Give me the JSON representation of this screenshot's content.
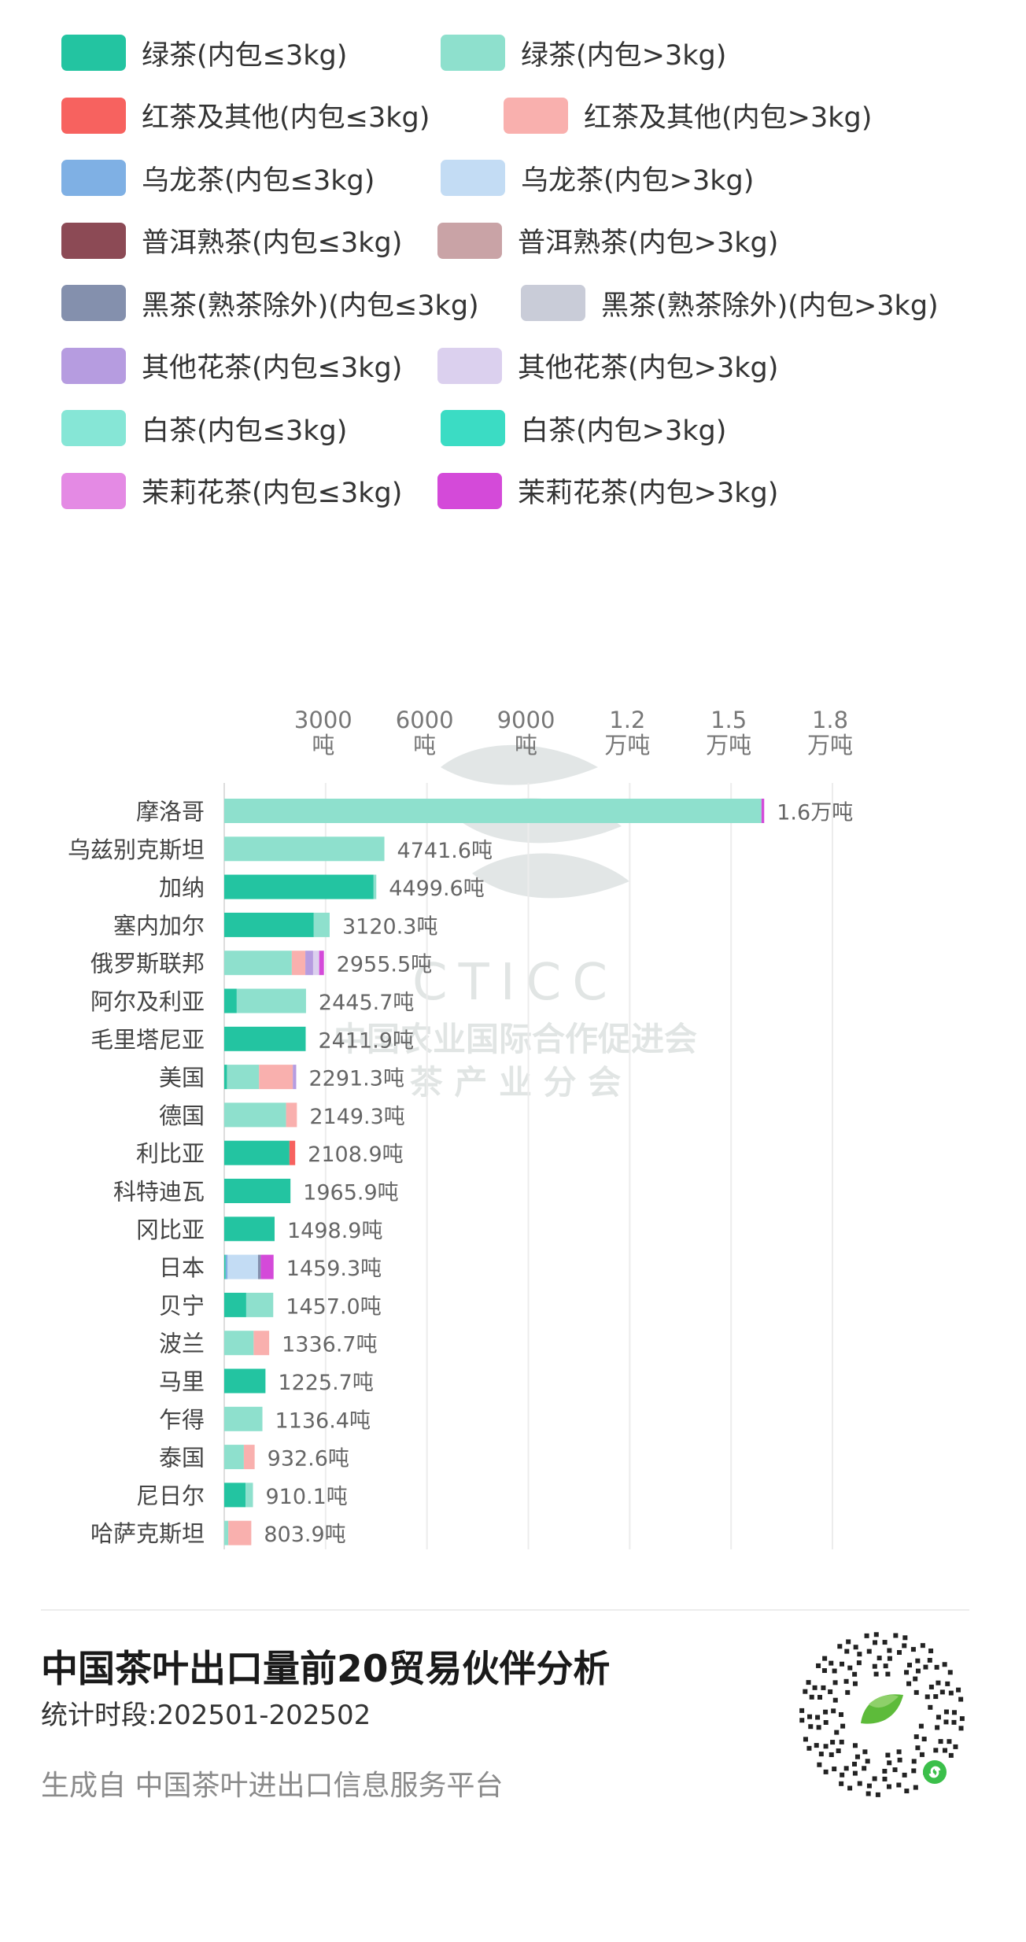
{
  "legend": [
    {
      "label": "绿茶(内包≤3kg)",
      "color": "#23c4a1"
    },
    {
      "label": "绿茶(内包>3kg)",
      "color": "#8ee0cd"
    },
    {
      "label": "红茶及其他(内包≤3kg)",
      "color": "#f7625f"
    },
    {
      "label": "红茶及其他(内包>3kg)",
      "color": "#f9b0ae"
    },
    {
      "label": "乌龙茶(内包≤3kg)",
      "color": "#7fb0e4"
    },
    {
      "label": "乌龙茶(内包>3kg)",
      "color": "#c3dcf4"
    },
    {
      "label": "普洱熟茶(内包≤3kg)",
      "color": "#8c4a55"
    },
    {
      "label": "普洱熟茶(内包>3kg)",
      "color": "#c9a3a6"
    },
    {
      "label": "黑茶(熟茶除外)(内包≤3kg)",
      "color": "#8490ad"
    },
    {
      "label": "黑茶(熟茶除外)(内包>3kg)",
      "color": "#c9ccd8"
    },
    {
      "label": "其他花茶(内包≤3kg)",
      "color": "#b69ce0"
    },
    {
      "label": "其他花茶(内包>3kg)",
      "color": "#dbd0ee"
    },
    {
      "label": "白茶(内包≤3kg)",
      "color": "#86e6d6"
    },
    {
      "label": "白茶(内包>3kg)",
      "color": "#3bdcc4"
    },
    {
      "label": "茉莉花茶(内包≤3kg)",
      "color": "#e48ae4"
    },
    {
      "label": "茉莉花茶(内包>3kg)",
      "color": "#d44ad9"
    }
  ],
  "chart_data": {
    "type": "bar",
    "orientation": "horizontal",
    "stacked": true,
    "unit": "吨",
    "xlim": [
      0,
      18000
    ],
    "x_ticks": [
      {
        "value": 3000,
        "label": [
          "3000",
          "吨"
        ]
      },
      {
        "value": 6000,
        "label": [
          "6000",
          "吨"
        ]
      },
      {
        "value": 9000,
        "label": [
          "9000",
          "吨"
        ]
      },
      {
        "value": 12000,
        "label": [
          "1.2",
          "万吨"
        ]
      },
      {
        "value": 15000,
        "label": [
          "1.5",
          "万吨"
        ]
      },
      {
        "value": 18000,
        "label": [
          "1.8",
          "万吨"
        ]
      }
    ],
    "grid": true,
    "categories": [
      "摩洛哥",
      "乌兹别克斯坦",
      "加纳",
      "塞内加尔",
      "俄罗斯联邦",
      "阿尔及利亚",
      "毛里塔尼亚",
      "美国",
      "德国",
      "利比亚",
      "科特迪瓦",
      "冈比亚",
      "日本",
      "贝宁",
      "波兰",
      "马里",
      "乍得",
      "泰国",
      "尼日尔",
      "哈萨克斯坦"
    ],
    "totals": [
      "1.6万吨",
      "4741.6吨",
      "4499.6吨",
      "3120.3吨",
      "2955.5吨",
      "2445.7吨",
      "2411.9吨",
      "2291.3吨",
      "2149.3吨",
      "2108.9吨",
      "1965.9吨",
      "1498.9吨",
      "1459.3吨",
      "1457.0吨",
      "1336.7吨",
      "1225.7吨",
      "1136.4吨",
      "932.6吨",
      "910.1吨",
      "803.9吨"
    ],
    "series": [
      {
        "name": "绿茶(内包≤3kg)",
        "color": "#23c4a1",
        "values": [
          0,
          0,
          4420,
          2650,
          0,
          370,
          2410,
          80,
          0,
          1930,
          1960,
          1490,
          40,
          650,
          0,
          1220,
          0,
          0,
          630,
          0
        ]
      },
      {
        "name": "绿茶(内包>3kg)",
        "color": "#8ee0cd",
        "values": [
          15900,
          4740,
          80,
          470,
          2000,
          2050,
          0,
          950,
          1830,
          0,
          0,
          0,
          0,
          800,
          870,
          0,
          1130,
          580,
          220,
          120
        ]
      },
      {
        "name": "红茶及其他(内包≤3kg)",
        "color": "#f7625f",
        "values": [
          0,
          0,
          0,
          0,
          0,
          0,
          0,
          0,
          0,
          170,
          0,
          0,
          0,
          0,
          0,
          0,
          0,
          0,
          0,
          0
        ]
      },
      {
        "name": "红茶及其他(内包>3kg)",
        "color": "#f9b0ae",
        "values": [
          0,
          0,
          0,
          0,
          400,
          0,
          0,
          1000,
          320,
          0,
          0,
          0,
          0,
          0,
          460,
          0,
          0,
          320,
          0,
          680
        ]
      },
      {
        "name": "乌龙茶(内包≤3kg)",
        "color": "#7fb0e4",
        "values": [
          0,
          0,
          0,
          0,
          0,
          0,
          0,
          0,
          0,
          0,
          0,
          0,
          60,
          0,
          0,
          0,
          0,
          0,
          0,
          0
        ]
      },
      {
        "name": "乌龙茶(内包>3kg)",
        "color": "#c3dcf4",
        "values": [
          0,
          0,
          0,
          0,
          0,
          0,
          0,
          0,
          0,
          0,
          0,
          0,
          900,
          0,
          0,
          0,
          0,
          0,
          0,
          0
        ]
      },
      {
        "name": "普洱熟茶(内包≤3kg)",
        "color": "#8c4a55",
        "values": [
          0,
          0,
          0,
          0,
          0,
          0,
          0,
          0,
          0,
          0,
          0,
          0,
          0,
          0,
          0,
          0,
          0,
          0,
          0,
          0
        ]
      },
      {
        "name": "普洱熟茶(内包>3kg)",
        "color": "#c9a3a6",
        "values": [
          0,
          0,
          0,
          0,
          0,
          0,
          0,
          0,
          0,
          0,
          0,
          0,
          0,
          0,
          0,
          0,
          0,
          0,
          0,
          0
        ]
      },
      {
        "name": "黑茶(熟茶除外)(内包≤3kg)",
        "color": "#8490ad",
        "values": [
          0,
          0,
          0,
          0,
          0,
          0,
          0,
          0,
          0,
          0,
          0,
          0,
          80,
          0,
          0,
          0,
          0,
          0,
          0,
          0
        ]
      },
      {
        "name": "黑茶(熟茶除外)(内包>3kg)",
        "color": "#c9ccd8",
        "values": [
          0,
          0,
          0,
          0,
          0,
          0,
          0,
          0,
          0,
          0,
          0,
          0,
          0,
          0,
          0,
          0,
          0,
          0,
          0,
          0
        ]
      },
      {
        "name": "其他花茶(内包≤3kg)",
        "color": "#b69ce0",
        "values": [
          0,
          0,
          0,
          0,
          230,
          0,
          0,
          100,
          0,
          0,
          0,
          0,
          0,
          0,
          0,
          0,
          0,
          0,
          0,
          0
        ]
      },
      {
        "name": "其他花茶(内包>3kg)",
        "color": "#dbd0ee",
        "values": [
          0,
          0,
          0,
          0,
          180,
          0,
          0,
          0,
          0,
          0,
          0,
          0,
          0,
          0,
          0,
          0,
          0,
          0,
          0,
          0
        ]
      },
      {
        "name": "白茶(内包≤3kg)",
        "color": "#86e6d6",
        "values": [
          0,
          0,
          0,
          0,
          0,
          0,
          0,
          0,
          0,
          0,
          0,
          0,
          0,
          0,
          0,
          0,
          0,
          0,
          0,
          0
        ]
      },
      {
        "name": "白茶(内包>3kg)",
        "color": "#3bdcc4",
        "values": [
          0,
          0,
          0,
          0,
          0,
          0,
          0,
          0,
          0,
          0,
          0,
          0,
          0,
          0,
          0,
          0,
          0,
          0,
          0,
          0
        ]
      },
      {
        "name": "茉莉花茶(内包≤3kg)",
        "color": "#e48ae4",
        "values": [
          0,
          0,
          0,
          0,
          0,
          0,
          0,
          0,
          0,
          0,
          0,
          0,
          0,
          0,
          0,
          0,
          0,
          0,
          0,
          0
        ]
      },
      {
        "name": "茉莉花茶(内包>3kg)",
        "color": "#d44ad9",
        "values": [
          80,
          0,
          0,
          0,
          140,
          0,
          0,
          0,
          0,
          0,
          0,
          0,
          380,
          0,
          0,
          0,
          0,
          0,
          0,
          0
        ]
      }
    ]
  },
  "watermark": {
    "brand": "CTICC",
    "line1": "中国农业国际合作促进会",
    "line2": "茶 产 业 分 会"
  },
  "footer": {
    "title": "中国茶叶出口量前20贸易伙伴分析",
    "period": "统计时段:202501-202502",
    "source": "生成自 中国茶叶进出口信息服务平台"
  },
  "qr": {
    "icon": "mini-program-qr-icon",
    "accent": "#5dbb3a"
  }
}
